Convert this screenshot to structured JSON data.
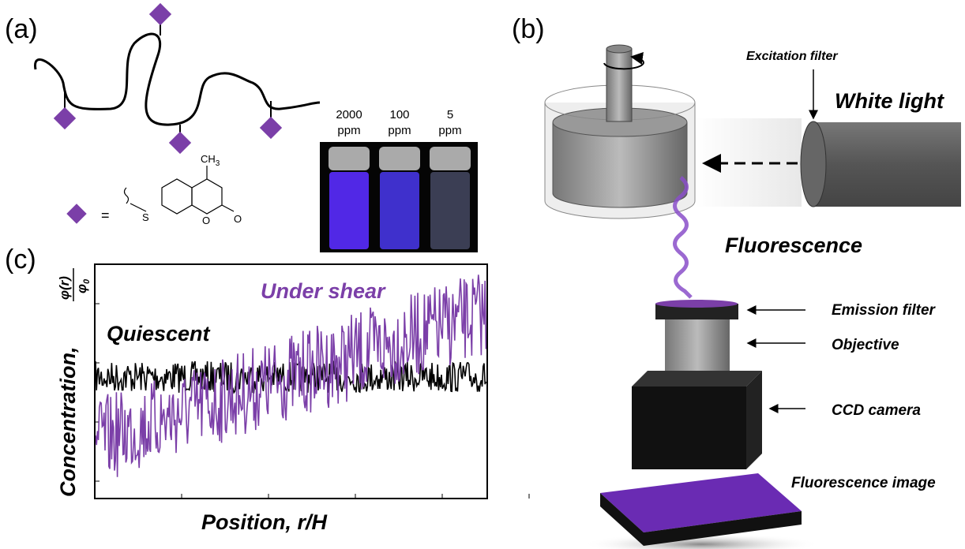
{
  "panels": {
    "a": {
      "label": "(a)",
      "vials": [
        {
          "conc": "2000",
          "unit": "ppm"
        },
        {
          "conc": "100",
          "unit": "ppm"
        },
        {
          "conc": "5",
          "unit": "ppm"
        }
      ],
      "structure": {
        "equals": "=",
        "methyl": "CH",
        "methyl_sub": "3",
        "sulfur": "S",
        "ring_oxygen": "O",
        "carbonyl_oxygen": "O"
      }
    },
    "b": {
      "label": "(b)",
      "excitation_filter": "Excitation filter",
      "light_source": "White light",
      "fluorescence": "Fluorescence",
      "emission_filter": "Emission filter",
      "objective": "Objective",
      "camera": "CCD camera",
      "image": "Fluorescence image"
    },
    "c": {
      "label": "(c)",
      "series": [
        {
          "name": "Under shear",
          "color": "#7b3fa8"
        },
        {
          "name": "Quiescent",
          "color": "#000000"
        }
      ],
      "y_label": "Concentration,",
      "y_num": "φ(r)",
      "y_den": "φ",
      "y_den_sub": "0",
      "x_label": "Position, r/H"
    }
  }
}
